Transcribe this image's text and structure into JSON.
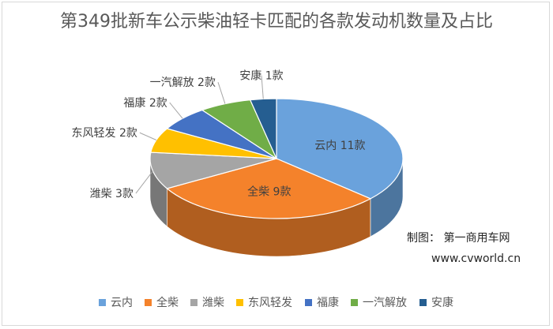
{
  "chart_data": {
    "type": "pie",
    "style": "3d",
    "title": "第349批新车公示柴油轻卡匹配的各款发动机数量及占比",
    "unit": "款",
    "categories": [
      "云内",
      "全柴",
      "潍柴",
      "东风轻发",
      "福康",
      "一汽解放",
      "安康"
    ],
    "values": [
      11,
      9,
      3,
      2,
      2,
      2,
      1
    ],
    "data_labels": [
      "云内 11款",
      "全柴 9款",
      "潍柴 3款",
      "东风轻发 2款",
      "福康 2款",
      "一汽解放 2款",
      "安康 1款"
    ],
    "colors": [
      "#6aa2dc",
      "#f4822b",
      "#a5a5a5",
      "#ffc000",
      "#4472c4",
      "#70ad47",
      "#255e91"
    ],
    "legend_position": "bottom"
  },
  "credit": {
    "maker": "制图：  第一商用车网",
    "url": "www.cvworld.cn"
  }
}
